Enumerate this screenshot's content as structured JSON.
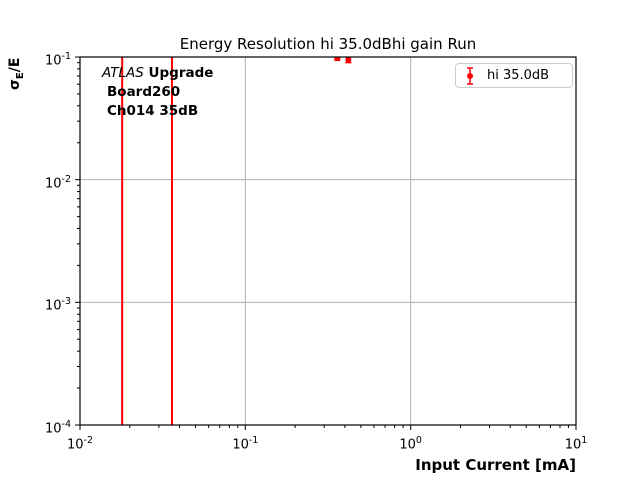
{
  "title": "Energy Resolution hi 35.0dBhi gain Run",
  "axes": {
    "xlabel": "Input Current [mA]",
    "ylabel_sigma": "σ",
    "ylabel_sub": "E",
    "ylabel_rest": "/E"
  },
  "annotation": {
    "atlas": "ATLAS",
    "upgrade": " Upgrade",
    "board": "Board260",
    "channel": "Ch014 35dB"
  },
  "legend": {
    "label": "hi 35.0dB"
  },
  "colors": {
    "accent": "#ff0000",
    "grid": "#b0b0b0",
    "spine": "#000000",
    "tick": "#000000",
    "legend_border": "#cccccc"
  },
  "chart_data": {
    "type": "scatter",
    "title": "Energy Resolution hi 35.0dBhi gain Run",
    "xlabel": "Input Current [mA]",
    "ylabel": "sigma_E/E",
    "xscale": "log",
    "yscale": "log",
    "xlim": [
      0.01,
      10
    ],
    "ylim": [
      0.0001,
      0.1
    ],
    "x_tick_exponents": [
      -2,
      -1,
      0,
      1
    ],
    "y_tick_exponents": [
      -1,
      -2,
      -3,
      -4
    ],
    "grid": true,
    "legend_position": "upper right",
    "series": [
      {
        "name": "hi 35.0dB",
        "color": "#ff0000",
        "marker": "circle-with-errorbars",
        "points": [
          {
            "x": 0.36,
            "y": 0.098,
            "yerr": 0.004
          },
          {
            "x": 0.42,
            "y": 0.095,
            "yerr": 0.005
          }
        ]
      }
    ],
    "vlines": [
      {
        "x": 0.018,
        "color": "#ff0000"
      },
      {
        "x": 0.036,
        "color": "#ff0000"
      }
    ]
  }
}
